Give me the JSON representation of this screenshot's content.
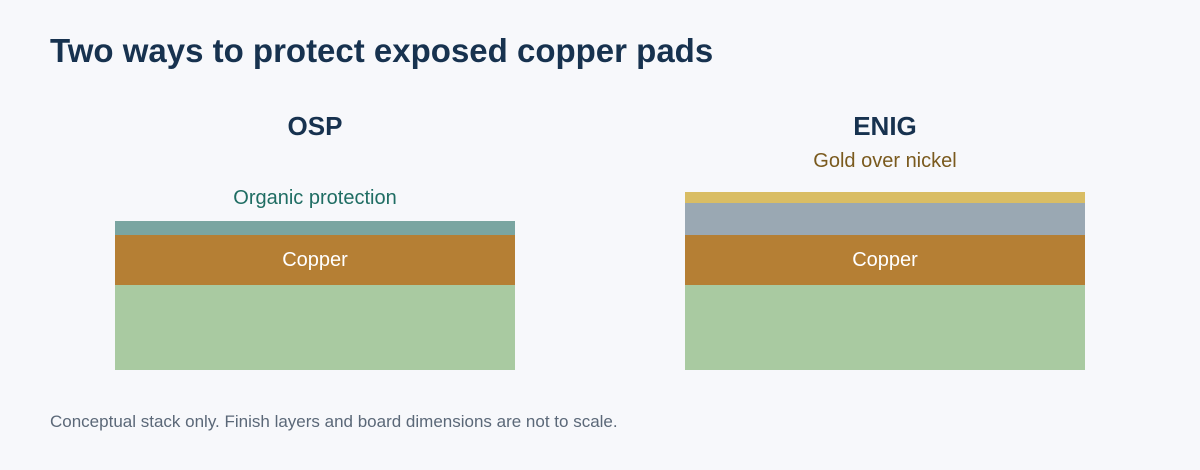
{
  "title": "Two ways to protect exposed copper pads",
  "panels": {
    "osp": {
      "heading": "OSP",
      "finish_label": "Organic protection",
      "copper_label": "Copper"
    },
    "enig": {
      "heading": "ENIG",
      "finish_label": "Gold over nickel",
      "copper_label": "Copper"
    }
  },
  "colors": {
    "background": "#f7f8fb",
    "title": "#17324f",
    "organic_layer": "#7aa5a1",
    "gold_layer": "#d9bd64",
    "nickel_layer": "#9aa8b3",
    "copper_layer": "#b57f34",
    "board": "#a9caa1"
  },
  "footnote": "Conceptual stack only. Finish layers and board dimensions are not to scale."
}
